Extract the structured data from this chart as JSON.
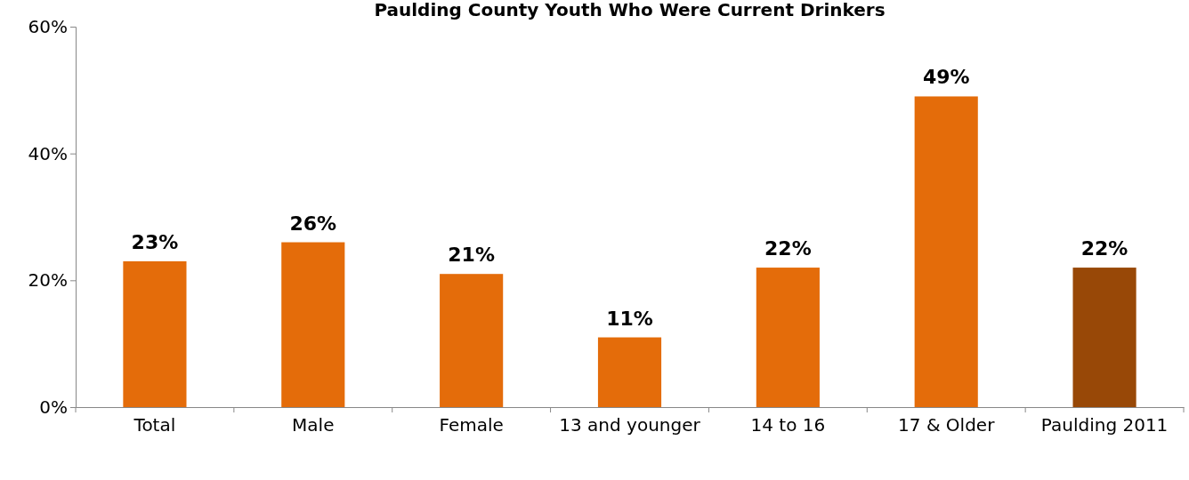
{
  "chart_data": {
    "type": "bar",
    "title": "Paulding County Youth Who Were Current Drinkers",
    "categories": [
      "Total",
      "Male",
      "Female",
      "13 and younger",
      "14 to 16",
      "17 & Older",
      "Paulding 2011"
    ],
    "values": [
      23,
      26,
      21,
      11,
      22,
      49,
      22
    ],
    "colors": [
      "#e46c0a",
      "#e46c0a",
      "#e46c0a",
      "#e46c0a",
      "#e46c0a",
      "#e46c0a",
      "#984807"
    ],
    "value_labels": [
      "23%",
      "26%",
      "21%",
      "11%",
      "22%",
      "49%",
      "22%"
    ],
    "ylim": [
      0,
      60
    ],
    "yticks": [
      {
        "value": 0,
        "label": "0%"
      },
      {
        "value": 20,
        "label": "20%"
      },
      {
        "value": 40,
        "label": "40%"
      },
      {
        "value": 60,
        "label": "60%"
      }
    ],
    "grid": false
  }
}
